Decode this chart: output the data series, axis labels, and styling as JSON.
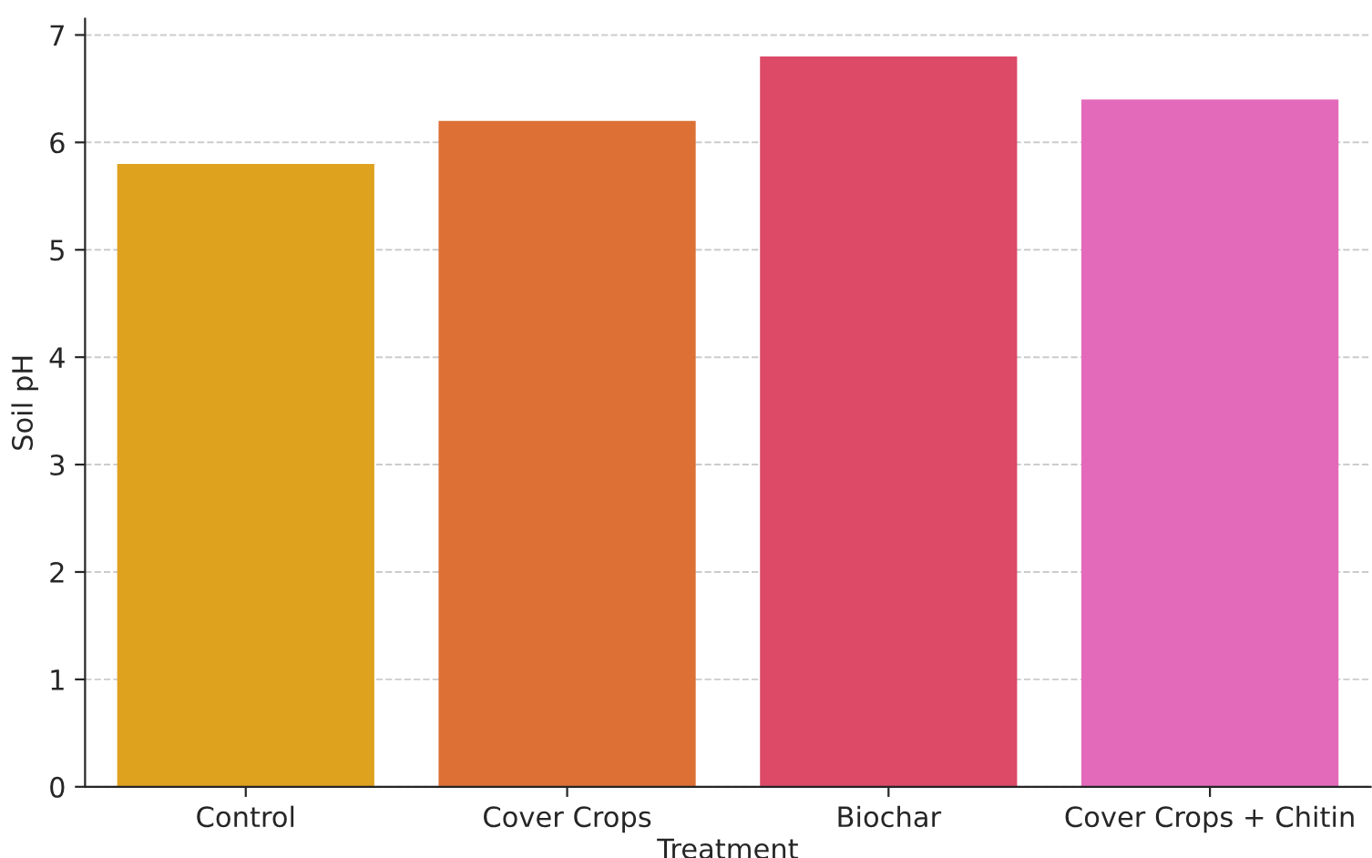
{
  "chart_data": {
    "type": "bar",
    "xlabel": "Treatment",
    "ylabel": "Soil pH",
    "categories": [
      "Control",
      "Cover Crops",
      "Biochar",
      "Cover Crops + Chitin"
    ],
    "values": [
      5.8,
      6.2,
      6.8,
      6.4
    ],
    "colors": [
      "#dfa21f",
      "#dc7035",
      "#dc4a68",
      "#e36abb"
    ],
    "ylim": [
      0,
      7.15
    ],
    "yticks": [
      0,
      1,
      2,
      3,
      4,
      5,
      6,
      7
    ],
    "grid": "y"
  }
}
